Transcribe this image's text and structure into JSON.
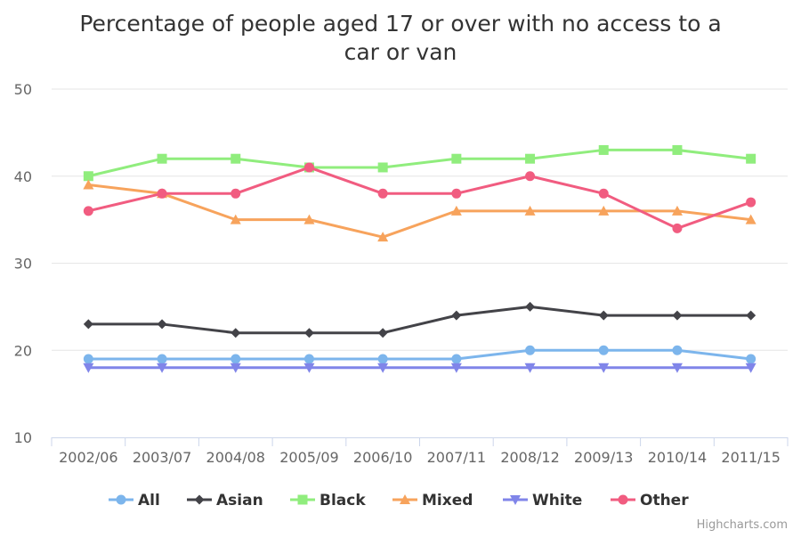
{
  "chart_data": {
    "type": "line",
    "title_lines": [
      "Percentage of people aged 17 or over with no access to a",
      "car or van"
    ],
    "categories": [
      "2002/06",
      "2003/07",
      "2004/08",
      "2005/09",
      "2006/10",
      "2007/11",
      "2008/12",
      "2009/13",
      "2010/14",
      "2011/15"
    ],
    "ylim": [
      10,
      50
    ],
    "yticks": [
      10,
      20,
      30,
      40,
      50
    ],
    "grid": true,
    "legend_position": "bottom",
    "series": [
      {
        "name": "All",
        "color": "#7cb5ec",
        "marker": "circle",
        "values": [
          19,
          19,
          19,
          19,
          19,
          19,
          20,
          20,
          20,
          19
        ]
      },
      {
        "name": "Asian",
        "color": "#434348",
        "marker": "diamond",
        "values": [
          23,
          23,
          22,
          22,
          22,
          24,
          25,
          24,
          24,
          24
        ]
      },
      {
        "name": "Black",
        "color": "#90ed7d",
        "marker": "square",
        "values": [
          40,
          42,
          42,
          41,
          41,
          42,
          42,
          43,
          43,
          42
        ]
      },
      {
        "name": "Mixed",
        "color": "#f7a35c",
        "marker": "triangle",
        "values": [
          39,
          38,
          35,
          35,
          33,
          36,
          36,
          36,
          36,
          35
        ]
      },
      {
        "name": "White",
        "color": "#8085e9",
        "marker": "triangle-down",
        "values": [
          18,
          18,
          18,
          18,
          18,
          18,
          18,
          18,
          18,
          18
        ]
      },
      {
        "name": "Other",
        "color": "#f15c80",
        "marker": "circle",
        "values": [
          36,
          38,
          38,
          41,
          38,
          38,
          40,
          38,
          34,
          37
        ]
      }
    ],
    "credits": "Highcharts.com"
  }
}
